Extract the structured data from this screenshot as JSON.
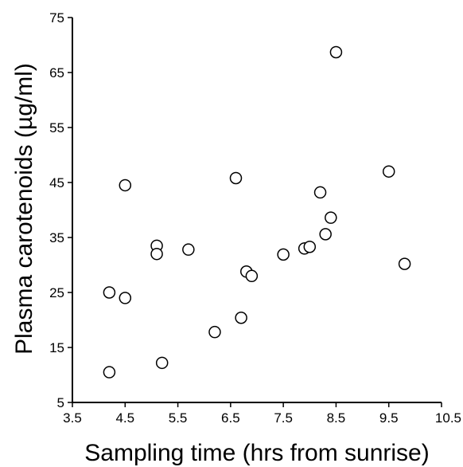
{
  "chart_data": {
    "type": "scatter",
    "title": "",
    "xlabel": "Sampling time (hrs from sunrise)",
    "ylabel": "Plasma carotenoids (µg/ml)",
    "xlim": [
      3.5,
      10.5
    ],
    "ylim": [
      5,
      75
    ],
    "xticks": [
      "3.5",
      "4.5",
      "5.5",
      "6.5",
      "7.5",
      "8.5",
      "9.5",
      "10.5"
    ],
    "yticks": [
      "5",
      "15",
      "25",
      "35",
      "45",
      "55",
      "65",
      "75"
    ],
    "grid": false,
    "legend": "none",
    "marker": "open-circle",
    "colors": {
      "marker_stroke": "#000000",
      "marker_fill": "#ffffff",
      "axis": "#000000"
    },
    "points": [
      {
        "x": 4.2,
        "y": 10.5
      },
      {
        "x": 4.2,
        "y": 25.0
      },
      {
        "x": 4.5,
        "y": 24.0
      },
      {
        "x": 4.5,
        "y": 44.5
      },
      {
        "x": 5.1,
        "y": 33.5
      },
      {
        "x": 5.1,
        "y": 32.0
      },
      {
        "x": 5.2,
        "y": 12.2
      },
      {
        "x": 5.7,
        "y": 32.8
      },
      {
        "x": 6.2,
        "y": 17.8
      },
      {
        "x": 6.6,
        "y": 45.8
      },
      {
        "x": 6.7,
        "y": 20.4
      },
      {
        "x": 6.8,
        "y": 28.8
      },
      {
        "x": 6.9,
        "y": 28.0
      },
      {
        "x": 7.5,
        "y": 31.9
      },
      {
        "x": 7.9,
        "y": 33.0
      },
      {
        "x": 8.0,
        "y": 33.3
      },
      {
        "x": 8.2,
        "y": 43.2
      },
      {
        "x": 8.3,
        "y": 35.6
      },
      {
        "x": 8.4,
        "y": 38.6
      },
      {
        "x": 8.5,
        "y": 68.7
      },
      {
        "x": 9.5,
        "y": 47.0
      },
      {
        "x": 9.8,
        "y": 30.2
      }
    ]
  }
}
